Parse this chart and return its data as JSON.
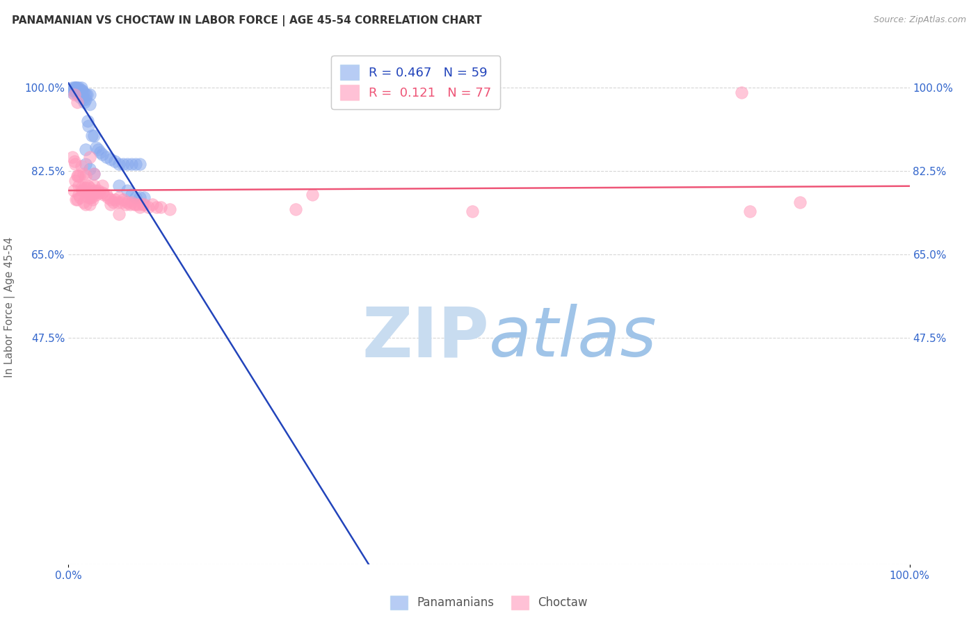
{
  "title": "PANAMANIAN VS CHOCTAW IN LABOR FORCE | AGE 45-54 CORRELATION CHART",
  "source": "Source: ZipAtlas.com",
  "ylabel": "In Labor Force | Age 45-54",
  "legend_labels": [
    "Panamanians",
    "Choctaw"
  ],
  "r_panamanian": 0.467,
  "n_panamanian": 59,
  "r_choctaw": 0.121,
  "n_choctaw": 77,
  "color_panamanian": "#88AAEE",
  "color_choctaw": "#FF99BB",
  "trendline_panamanian": "#2244BB",
  "trendline_choctaw": "#EE5577",
  "bg_color": "#FFFFFF",
  "grid_color": "#CCCCCC",
  "axis_label_color": "#3366CC",
  "title_color": "#333333",
  "source_color": "#999999",
  "watermark_zip_color": "#C8DCF0",
  "watermark_atlas_color": "#A0C4E8",
  "ytick_values": [
    0.0,
    0.475,
    0.65,
    0.825,
    1.0
  ],
  "ytick_labels": [
    "",
    "47.5%",
    "65.0%",
    "82.5%",
    "100.0%"
  ],
  "xtick_values": [
    0.0,
    1.0
  ],
  "xtick_labels": [
    "0.0%",
    "100.0%"
  ],
  "pan_x": [
    0.005,
    0.005,
    0.005,
    0.007,
    0.007,
    0.008,
    0.009,
    0.009,
    0.01,
    0.01,
    0.01,
    0.01,
    0.012,
    0.012,
    0.013,
    0.013,
    0.014,
    0.014,
    0.015,
    0.015,
    0.015,
    0.016,
    0.016,
    0.017,
    0.018,
    0.018,
    0.019,
    0.02,
    0.02,
    0.02,
    0.022,
    0.023,
    0.024,
    0.025,
    0.025,
    0.028,
    0.03,
    0.033,
    0.035,
    0.038,
    0.04,
    0.045,
    0.05,
    0.055,
    0.06,
    0.065,
    0.07,
    0.075,
    0.08,
    0.085,
    0.02,
    0.025,
    0.03,
    0.06,
    0.07,
    0.075,
    0.08,
    0.085,
    0.09
  ],
  "pan_y": [
    1.0,
    0.995,
    0.99,
    1.0,
    0.995,
    1.0,
    1.0,
    0.995,
    1.0,
    0.995,
    0.99,
    0.985,
    1.0,
    0.995,
    0.99,
    0.985,
    0.99,
    0.98,
    1.0,
    0.995,
    0.99,
    0.995,
    0.985,
    0.98,
    0.99,
    0.975,
    0.97,
    0.985,
    0.975,
    0.87,
    0.985,
    0.93,
    0.92,
    0.985,
    0.965,
    0.9,
    0.9,
    0.875,
    0.87,
    0.865,
    0.86,
    0.855,
    0.85,
    0.845,
    0.84,
    0.84,
    0.84,
    0.84,
    0.84,
    0.84,
    0.84,
    0.83,
    0.82,
    0.795,
    0.785,
    0.775,
    0.77,
    0.77,
    0.77
  ],
  "cho_x": [
    0.005,
    0.006,
    0.007,
    0.008,
    0.009,
    0.01,
    0.01,
    0.011,
    0.012,
    0.012,
    0.013,
    0.014,
    0.015,
    0.015,
    0.016,
    0.017,
    0.018,
    0.018,
    0.019,
    0.02,
    0.02,
    0.021,
    0.022,
    0.023,
    0.024,
    0.025,
    0.025,
    0.026,
    0.027,
    0.028,
    0.029,
    0.03,
    0.031,
    0.032,
    0.033,
    0.035,
    0.037,
    0.04,
    0.042,
    0.045,
    0.047,
    0.05,
    0.053,
    0.055,
    0.058,
    0.06,
    0.063,
    0.065,
    0.068,
    0.07,
    0.073,
    0.075,
    0.078,
    0.08,
    0.083,
    0.085,
    0.088,
    0.09,
    0.095,
    0.1,
    0.105,
    0.11,
    0.12,
    0.007,
    0.008,
    0.01,
    0.025,
    0.03,
    0.04,
    0.05,
    0.06,
    0.29,
    0.48,
    0.8,
    0.81,
    0.87,
    0.27
  ],
  "cho_y": [
    0.855,
    0.785,
    0.845,
    0.805,
    0.765,
    0.815,
    0.765,
    0.815,
    0.795,
    0.775,
    0.815,
    0.77,
    0.835,
    0.79,
    0.785,
    0.785,
    0.82,
    0.76,
    0.79,
    0.815,
    0.755,
    0.79,
    0.78,
    0.795,
    0.77,
    0.79,
    0.755,
    0.77,
    0.775,
    0.77,
    0.765,
    0.795,
    0.785,
    0.78,
    0.775,
    0.785,
    0.78,
    0.78,
    0.775,
    0.775,
    0.77,
    0.765,
    0.76,
    0.765,
    0.76,
    0.77,
    0.76,
    0.765,
    0.755,
    0.76,
    0.755,
    0.76,
    0.755,
    0.755,
    0.755,
    0.75,
    0.755,
    0.755,
    0.75,
    0.755,
    0.75,
    0.75,
    0.745,
    0.985,
    0.84,
    0.97,
    0.855,
    0.82,
    0.795,
    0.755,
    0.735,
    0.775,
    0.74,
    0.99,
    0.74,
    0.76,
    0.745
  ]
}
